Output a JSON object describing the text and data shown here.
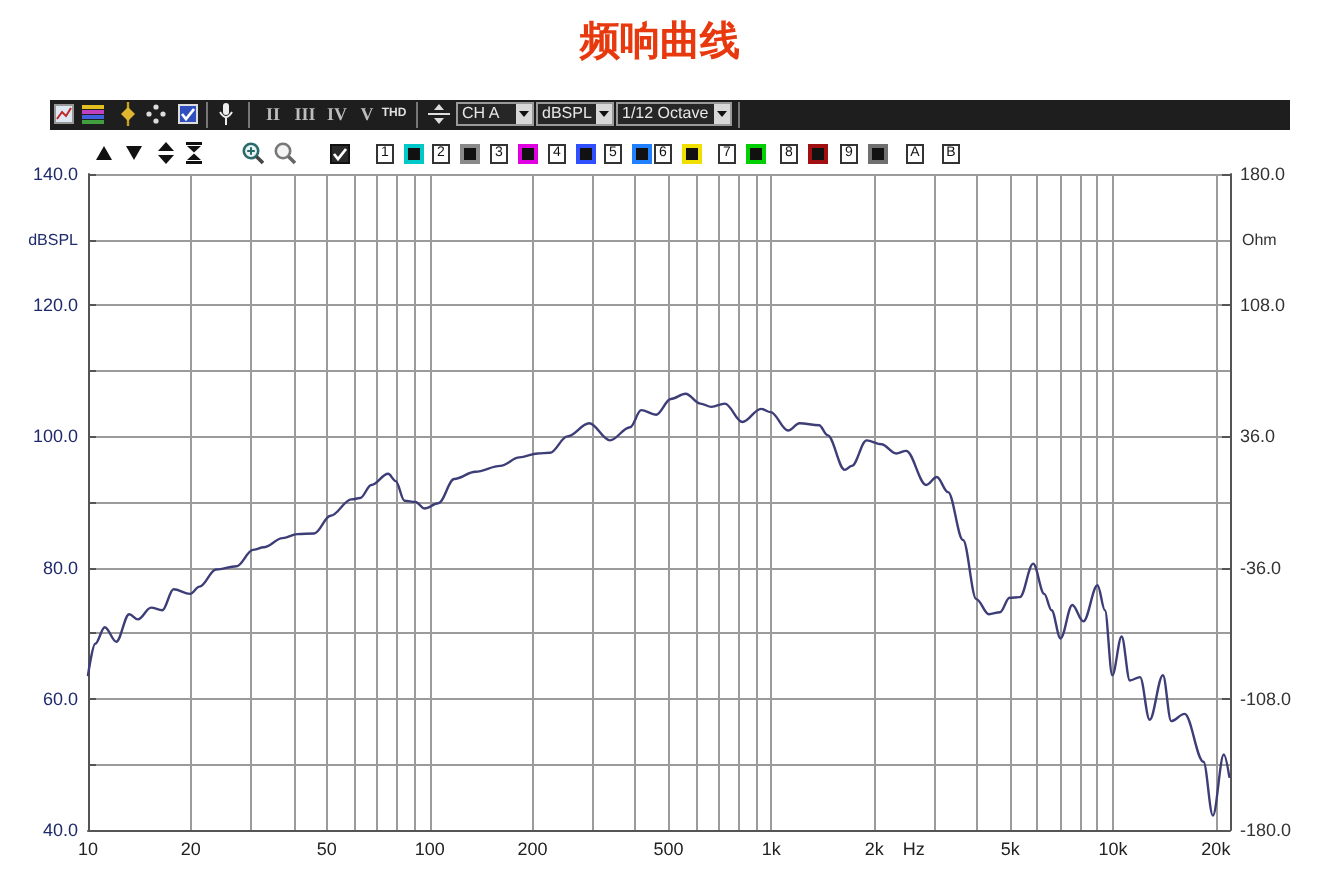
{
  "chart_data": {
    "type": "line",
    "title": "频响曲线",
    "xlabel": "Hz",
    "ylabel": "dBSPL",
    "y2label": "Ohm",
    "annotations": [
      "II",
      "III",
      "IV",
      "V",
      "THD",
      "CH A",
      "dBSPL",
      "1/12 Octave",
      "1",
      "2",
      "3",
      "4",
      "5",
      "6",
      "7",
      "8",
      "9",
      "A",
      "B"
    ],
    "x": [
      10,
      10.5,
      11.2,
      12.1,
      13.2,
      14,
      15.3,
      16.5,
      17.8,
      19.9,
      21.2,
      23.7,
      27.2,
      30.4,
      32.7,
      37.1,
      41,
      45.9,
      51.3,
      59,
      62.6,
      67.5,
      75.6,
      79.5,
      84.4,
      90.9,
      96.6,
      106,
      118,
      136,
      161,
      183,
      207,
      225,
      253,
      293,
      337,
      386,
      416,
      460,
      508,
      561,
      620,
      668,
      731,
      823,
      933,
      995,
      1120,
      1210,
      1380,
      1460,
      1640,
      1720,
      1900,
      2100,
      2320,
      2480,
      2840,
      3050,
      3290,
      3640,
      3980,
      4330,
      4670,
      4980,
      5340,
      5840,
      6290,
      6610,
      7020,
      7600,
      8190,
      9010,
      9470,
      9950,
      10600,
      11200,
      12000,
      12800,
      14000,
      14800,
      16200,
      18400,
      19600,
      21100,
      21900
    ],
    "values": [
      63.6,
      68.4,
      70.9,
      68.7,
      72.9,
      72.1,
      73.9,
      73.5,
      76.7,
      76.0,
      77.1,
      79.7,
      80.2,
      82.7,
      83.1,
      84.5,
      85.1,
      85.2,
      87.9,
      90.4,
      90.6,
      92.6,
      94.3,
      93.2,
      90.2,
      90.0,
      89.0,
      89.8,
      93.5,
      94.6,
      95.5,
      96.8,
      97.4,
      97.5,
      100.0,
      102.0,
      99.4,
      101.4,
      104.0,
      103.3,
      105.7,
      106.5,
      105.0,
      104.5,
      105.0,
      102.2,
      104.2,
      103.7,
      100.9,
      102.0,
      101.7,
      100.2,
      94.9,
      95.5,
      99.4,
      98.8,
      97.4,
      97.8,
      92.6,
      93.8,
      91.5,
      84.2,
      75.2,
      72.9,
      73.2,
      75.4,
      75.5,
      80.6,
      76.0,
      73.5,
      69.2,
      74.3,
      71.8,
      77.3,
      73.5,
      63.6,
      69.5,
      62.8,
      63.3,
      56.8,
      63.6,
      56.6,
      57.7,
      50.4,
      42.2,
      51.5,
      48.1
    ],
    "color": "#3d3d78",
    "log": "x",
    "xlim": [
      10,
      22000
    ],
    "xticks": [
      10,
      20,
      {
        "value": 30,
        "label": null
      },
      {
        "value": 40,
        "label": null
      },
      50,
      {
        "value": 60,
        "label": null
      },
      {
        "value": 70,
        "label": null
      },
      {
        "value": 80,
        "label": null
      },
      {
        "value": 90,
        "label": null
      },
      100,
      200,
      {
        "value": 300,
        "label": null
      },
      {
        "value": 400,
        "label": null
      },
      500,
      {
        "value": 600,
        "label": null
      },
      {
        "value": 700,
        "label": null
      },
      {
        "value": 800,
        "label": null
      },
      {
        "value": 900,
        "label": null
      },
      {
        "value": 1000,
        "label": "1k"
      },
      {
        "value": 2000,
        "label": "2k"
      },
      {
        "value": 3000,
        "label": null
      },
      {
        "value": 4000,
        "label": null
      },
      {
        "value": 5000,
        "label": "5k"
      },
      {
        "value": 6000,
        "label": null
      },
      {
        "value": 7000,
        "label": null
      },
      {
        "value": 8000,
        "label": null
      },
      {
        "value": 9000,
        "label": null
      },
      {
        "value": 10000,
        "label": "10k"
      },
      {
        "value": 20000,
        "label": "20k"
      }
    ],
    "ylim": [
      40,
      140
    ],
    "yticks": [
      {
        "value": 40,
        "label": "40.0"
      },
      {
        "value": 50,
        "label": null
      },
      {
        "value": 60,
        "label": "60.0"
      },
      {
        "value": 70,
        "label": null
      },
      {
        "value": 80,
        "label": "80.0"
      },
      {
        "value": 90,
        "label": null
      },
      {
        "value": 100,
        "label": "100.0"
      },
      {
        "value": 110,
        "label": null
      },
      {
        "value": 120,
        "label": "120.0"
      },
      {
        "value": 130,
        "label": null
      },
      {
        "value": 140,
        "label": "140.0"
      }
    ],
    "y2lim": [
      -180,
      180
    ],
    "y2ticks": [
      {
        "value": -180,
        "label": "-180.0"
      },
      {
        "value": -108,
        "label": "-108.0"
      },
      {
        "value": -36,
        "label": "-36.0"
      },
      {
        "value": 36,
        "label": "36.0"
      },
      {
        "value": 108,
        "label": "108.0"
      },
      {
        "value": 180,
        "label": "180.0"
      }
    ],
    "grid": true,
    "marker": "none",
    "line_style": "solid"
  }
}
